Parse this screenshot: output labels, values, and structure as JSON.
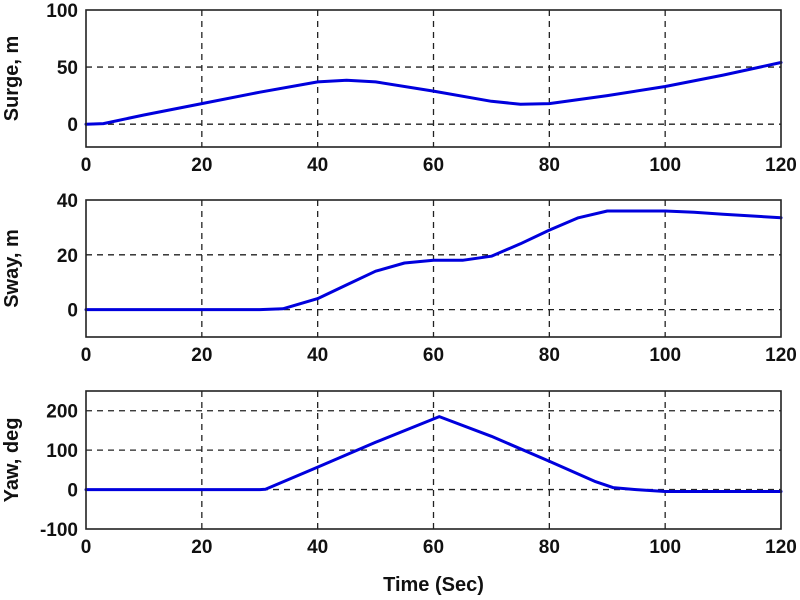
{
  "figure": {
    "xlabel": "Time (Sec)",
    "line_color": "#0000dd",
    "grid_color": "#222222"
  },
  "chart_data": [
    {
      "type": "line",
      "title": "",
      "xlabel": "",
      "ylabel": "Surge, m",
      "xlim": [
        0,
        120
      ],
      "ylim": [
        -20,
        100
      ],
      "xticks": [
        0,
        20,
        40,
        60,
        80,
        100,
        120
      ],
      "yticks": [
        0,
        50,
        100
      ],
      "grid": true,
      "series": [
        {
          "name": "Surge",
          "x": [
            0,
            3,
            10,
            20,
            30,
            40,
            45,
            50,
            60,
            70,
            75,
            80,
            90,
            100,
            110,
            120
          ],
          "values": [
            0,
            0.5,
            8,
            18,
            28,
            37,
            38.5,
            37,
            29,
            20,
            17.5,
            18,
            25,
            33,
            43,
            54
          ]
        }
      ]
    },
    {
      "type": "line",
      "title": "",
      "xlabel": "",
      "ylabel": "Sway, m",
      "xlim": [
        0,
        120
      ],
      "ylim": [
        -10,
        40
      ],
      "xticks": [
        0,
        20,
        40,
        60,
        80,
        100,
        120
      ],
      "yticks": [
        0,
        20,
        40
      ],
      "grid": true,
      "series": [
        {
          "name": "Sway",
          "x": [
            0,
            30,
            34,
            40,
            45,
            50,
            55,
            60,
            65,
            70,
            75,
            80,
            85,
            90,
            100,
            105,
            110,
            120
          ],
          "values": [
            0,
            0,
            0.3,
            4,
            9,
            14,
            17,
            18,
            18,
            19.5,
            24,
            29,
            33.5,
            36,
            36,
            35.5,
            34.8,
            33.5
          ]
        }
      ]
    },
    {
      "type": "line",
      "title": "",
      "xlabel": "Time (Sec)",
      "ylabel": "Yaw, deg",
      "xlim": [
        0,
        120
      ],
      "ylim": [
        -100,
        250
      ],
      "xticks": [
        0,
        20,
        40,
        60,
        80,
        100,
        120
      ],
      "yticks": [
        -100,
        0,
        100,
        200
      ],
      "grid": true,
      "series": [
        {
          "name": "Yaw",
          "x": [
            0,
            30,
            31,
            40,
            50,
            61,
            70,
            80,
            88,
            91,
            95,
            100,
            120
          ],
          "values": [
            0,
            0,
            1,
            57,
            120,
            185,
            135,
            72,
            20,
            5,
            0,
            -5,
            -5
          ]
        }
      ]
    }
  ]
}
